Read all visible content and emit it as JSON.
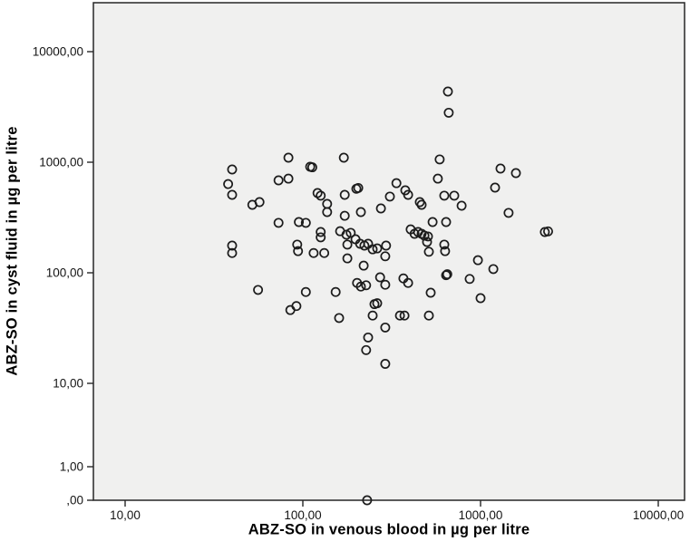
{
  "chart_data": {
    "type": "scatter",
    "title": "",
    "xlabel": "ABZ-SO in venous blood in µg per litre",
    "ylabel": "ABZ-SO in cyst fluid in µg per litre",
    "x_scale": "log",
    "y_scale": "log-with-zero",
    "grid": false,
    "legend": "none",
    "plot_bg_color": "#f0f0ef",
    "frame_color": "#262626",
    "marker": {
      "shape": "open-circle",
      "stroke_color": "#1c1c1c",
      "fill": "none"
    },
    "x_ticks": [
      {
        "label": "10,00",
        "value": 10
      },
      {
        "label": "100,00",
        "value": 100
      },
      {
        "label": "1000,00",
        "value": 1000
      },
      {
        "label": "10000,00",
        "value": 10000
      }
    ],
    "y_ticks": [
      {
        "label": "10000,00",
        "value": 10000
      },
      {
        "label": "1000,00",
        "value": 1000
      },
      {
        "label": "100,00",
        "value": 100
      },
      {
        "label": "10,00",
        "value": 10
      },
      {
        "label": "1,00",
        "value": 1
      },
      {
        "label": ",00",
        "value": 0
      }
    ],
    "xlim": [
      6.6,
      14000
    ],
    "ylim": [
      0,
      28000
    ],
    "points": [
      [
        83,
        1100
      ],
      [
        110,
        910
      ],
      [
        113,
        900
      ],
      [
        170,
        1100
      ],
      [
        40,
        860
      ],
      [
        38,
        635
      ],
      [
        40,
        507
      ],
      [
        73,
        686
      ],
      [
        83,
        711
      ],
      [
        52,
        412
      ],
      [
        57,
        436
      ],
      [
        121,
        526
      ],
      [
        126,
        498
      ],
      [
        137,
        420
      ],
      [
        172,
        507
      ],
      [
        200,
        575
      ],
      [
        205,
        585
      ],
      [
        137,
        354
      ],
      [
        172,
        328
      ],
      [
        212,
        354
      ],
      [
        275,
        382
      ],
      [
        73,
        283
      ],
      [
        95,
        288
      ],
      [
        104,
        283
      ],
      [
        126,
        234
      ],
      [
        126,
        209
      ],
      [
        162,
        238
      ],
      [
        655,
        4360
      ],
      [
        662,
        2800
      ],
      [
        589,
        1060
      ],
      [
        575,
        711
      ],
      [
        336,
        647
      ],
      [
        377,
        557
      ],
      [
        391,
        507
      ],
      [
        309,
        489
      ],
      [
        455,
        436
      ],
      [
        466,
        412
      ],
      [
        625,
        498
      ],
      [
        711,
        498
      ],
      [
        782,
        404
      ],
      [
        1295,
        877
      ],
      [
        1582,
        798
      ],
      [
        1207,
        589
      ],
      [
        1438,
        348
      ],
      [
        537,
        288
      ],
      [
        640,
        288
      ],
      [
        404,
        247
      ],
      [
        425,
        225
      ],
      [
        445,
        234
      ],
      [
        466,
        225
      ],
      [
        483,
        217
      ],
      [
        506,
        213
      ],
      [
        500,
        190
      ],
      [
        294,
        176
      ],
      [
        291,
        141
      ],
      [
        625,
        180
      ],
      [
        632,
        157
      ],
      [
        512,
        155
      ],
      [
        2300,
        234
      ],
      [
        2400,
        237
      ],
      [
        40,
        176
      ],
      [
        40,
        151
      ],
      [
        176,
        221
      ],
      [
        186,
        230
      ],
      [
        198,
        201
      ],
      [
        210,
        183
      ],
      [
        222,
        176
      ],
      [
        233,
        183
      ],
      [
        178,
        180
      ],
      [
        247,
        163
      ],
      [
        262,
        166
      ],
      [
        93,
        180
      ],
      [
        94,
        157
      ],
      [
        115,
        151
      ],
      [
        132,
        151
      ],
      [
        178,
        135
      ],
      [
        220,
        116
      ],
      [
        202,
        81
      ],
      [
        212,
        75
      ],
      [
        227,
        77
      ],
      [
        56,
        70
      ],
      [
        104,
        67
      ],
      [
        153,
        67
      ],
      [
        272,
        91
      ],
      [
        291,
        78
      ],
      [
        368,
        89
      ],
      [
        391,
        81
      ],
      [
        524,
        66
      ],
      [
        640,
        95
      ],
      [
        650,
        97
      ],
      [
        869,
        88
      ],
      [
        966,
        130
      ],
      [
        1180,
        108
      ],
      [
        1000,
        59
      ],
      [
        85,
        46
      ],
      [
        92,
        50
      ],
      [
        160,
        39
      ],
      [
        253,
        52
      ],
      [
        262,
        53
      ],
      [
        247,
        41
      ],
      [
        233,
        26
      ],
      [
        227,
        20
      ],
      [
        352,
        41
      ],
      [
        373,
        41
      ],
      [
        512,
        41
      ],
      [
        291,
        32
      ],
      [
        291,
        15
      ],
      [
        230,
        0
      ]
    ]
  }
}
